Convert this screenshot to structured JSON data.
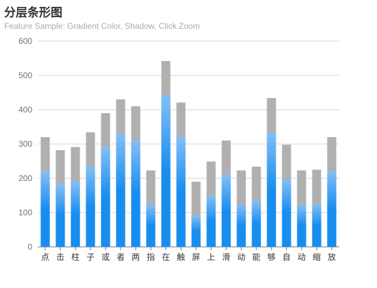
{
  "chart_data": {
    "type": "bar",
    "title": "分层条形图",
    "subtitle": "Feature Sample: Gradient Color, Shadow, Click Zoom",
    "categories": [
      "点",
      "击",
      "柱",
      "子",
      "或",
      "者",
      "两",
      "指",
      "在",
      "触",
      "屏",
      "上",
      "滑",
      "动",
      "能",
      "够",
      "自",
      "动",
      "缩",
      "放"
    ],
    "series": [
      {
        "values": [
          220,
          182,
          191,
          234,
          290,
          330,
          310,
          123,
          442,
          321,
          90,
          149,
          210,
          123,
          134,
          334,
          198,
          123,
          125,
          220
        ]
      },
      {
        "values": [
          320,
          282,
          291,
          334,
          390,
          430,
          410,
          223,
          542,
          421,
          190,
          249,
          310,
          223,
          234,
          434,
          298,
          223,
          225,
          320
        ]
      }
    ],
    "ylim": [
      0,
      600
    ],
    "yticks": [
      0,
      100,
      200,
      300,
      400,
      500,
      600
    ],
    "grid": true,
    "colors": {
      "front_top": "#83bff6",
      "front_mid": "#188df0",
      "front_bottom": "#188df0",
      "shadow": "#b0b0b0",
      "gridline": "#d6d6d6",
      "axis": "#6e7079"
    }
  }
}
